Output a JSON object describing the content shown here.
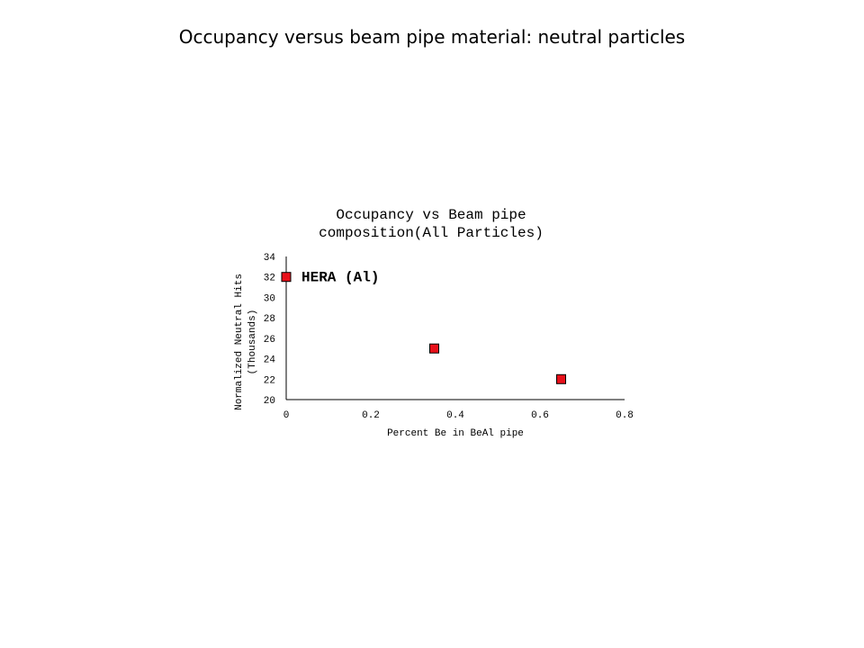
{
  "slide": {
    "title": "Occupancy versus beam pipe material: neutral particles"
  },
  "chart_data": {
    "type": "scatter",
    "title_lines": [
      "Occupancy vs Beam pipe",
      "composition(All Particles)"
    ],
    "xlabel": "Percent Be in BeAl pipe",
    "ylabel_lines": [
      "Normalized Neutral Hits",
      "(Thousands)"
    ],
    "xlim": [
      0,
      0.8
    ],
    "ylim": [
      20,
      34
    ],
    "x_ticks": [
      "0",
      "0.2",
      "0.4",
      "0.6",
      "0.8"
    ],
    "y_ticks": [
      "20",
      "22",
      "24",
      "26",
      "28",
      "30",
      "32",
      "34"
    ],
    "grid": false,
    "marker": "square",
    "marker_color": "#e8101a",
    "points": [
      {
        "x": 0,
        "y": 32
      },
      {
        "x": 0.35,
        "y": 25
      },
      {
        "x": 0.65,
        "y": 22
      }
    ],
    "annotations": [
      {
        "text": "HERA (Al)",
        "x": 0,
        "y": 32
      }
    ]
  }
}
